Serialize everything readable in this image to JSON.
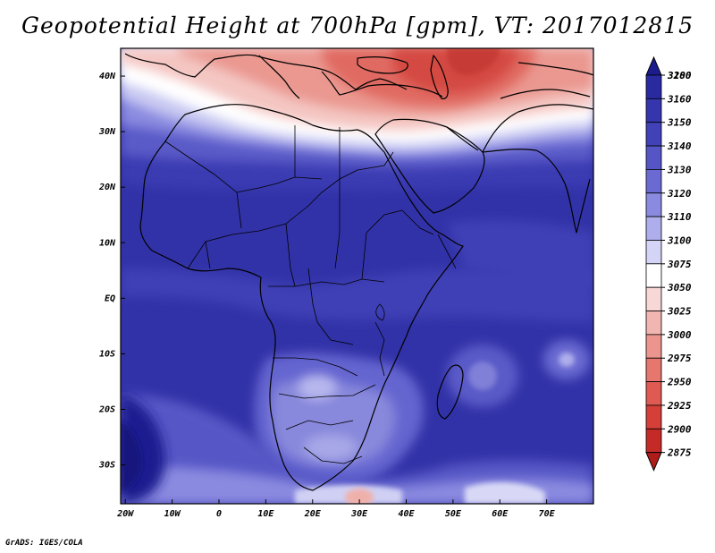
{
  "title": "Geopotential Height at 700hPa [gpm], VT: 2017012815",
  "credit": "GrADS: IGES/COLA",
  "map": {
    "variable": "Geopotential Height",
    "level": "700hPa",
    "units": "gpm",
    "valid_time": "2017012815",
    "lat_range": [
      -37,
      45
    ],
    "lon_range": [
      -21,
      80
    ],
    "lat_ticks": [
      {
        "value": 40,
        "label": "40N"
      },
      {
        "value": 30,
        "label": "30N"
      },
      {
        "value": 20,
        "label": "20N"
      },
      {
        "value": 10,
        "label": "10N"
      },
      {
        "value": 0,
        "label": "EQ"
      },
      {
        "value": -10,
        "label": "10S"
      },
      {
        "value": -20,
        "label": "20S"
      },
      {
        "value": -30,
        "label": "30S"
      }
    ],
    "lon_ticks": [
      {
        "value": -20,
        "label": "20W"
      },
      {
        "value": -10,
        "label": "10W"
      },
      {
        "value": 0,
        "label": "0"
      },
      {
        "value": 10,
        "label": "10E"
      },
      {
        "value": 20,
        "label": "20E"
      },
      {
        "value": 30,
        "label": "30E"
      },
      {
        "value": 40,
        "label": "40E"
      },
      {
        "value": 50,
        "label": "50E"
      },
      {
        "value": 60,
        "label": "60E"
      },
      {
        "value": 70,
        "label": "70E"
      }
    ]
  },
  "colorbar": {
    "levels": [
      {
        "label": "3200",
        "color": "#1c1c8f"
      },
      {
        "label": "3180",
        "color": "#2a2aa0"
      },
      {
        "label": "3160",
        "color": "#3535ae"
      },
      {
        "label": "3150",
        "color": "#4141b8"
      },
      {
        "label": "3140",
        "color": "#5555c6"
      },
      {
        "label": "3130",
        "color": "#6a6ad2"
      },
      {
        "label": "3120",
        "color": "#8a8ae0"
      },
      {
        "label": "3110",
        "color": "#aeaeec"
      },
      {
        "label": "3100",
        "color": "#d4d4f6"
      },
      {
        "label": "3075",
        "color": "#ffffff"
      },
      {
        "label": "3050",
        "color": "#f8d8d6"
      },
      {
        "label": "3025",
        "color": "#f2b6b2"
      },
      {
        "label": "3000",
        "color": "#ec958e"
      },
      {
        "label": "2975",
        "color": "#e6776f"
      },
      {
        "label": "2950",
        "color": "#de5a52"
      },
      {
        "label": "2925",
        "color": "#d43f38"
      },
      {
        "label": "2900",
        "color": "#c42b26"
      },
      {
        "label": "2875",
        "color": "#b01c1a"
      }
    ]
  }
}
